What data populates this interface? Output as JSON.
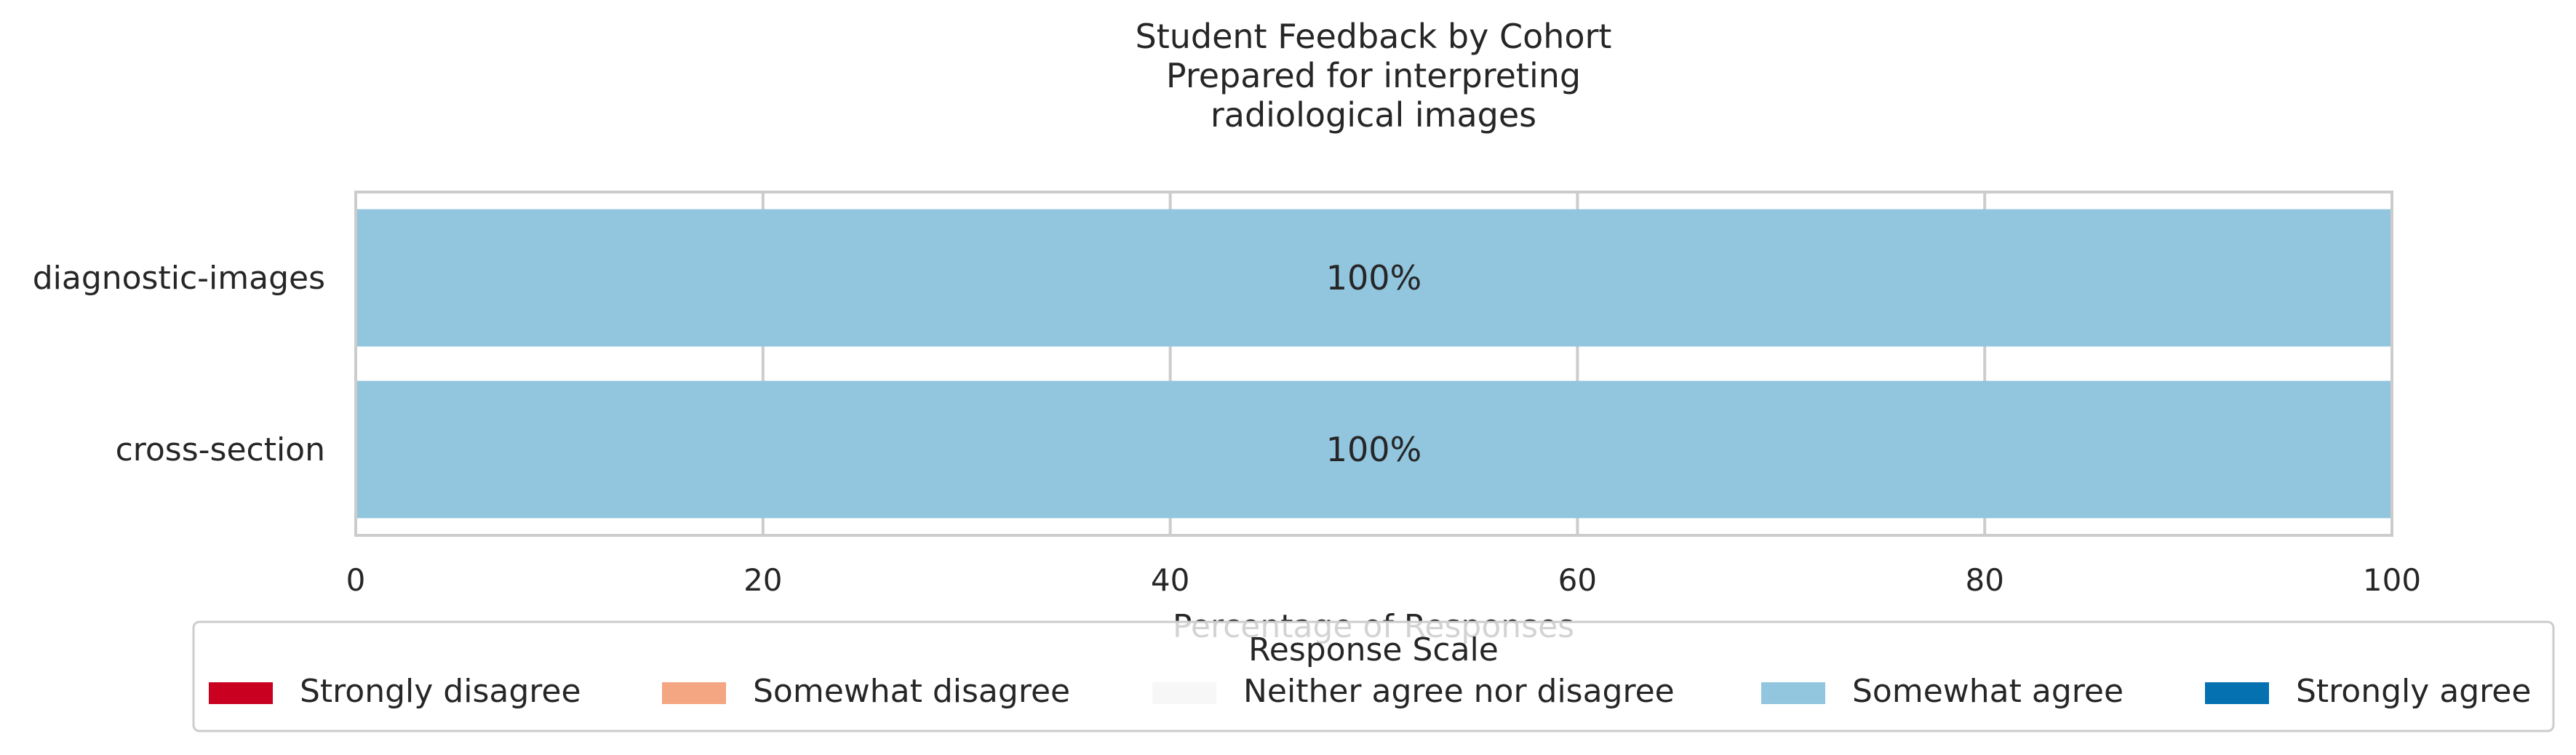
{
  "chart_data": {
    "type": "bar",
    "orientation": "horizontal",
    "stacked": true,
    "title": [
      "Student Feedback by Cohort",
      "Prepared for interpreting",
      "radiological images"
    ],
    "xlabel": "Percentage of Responses",
    "ylabel": "",
    "xlim": [
      0,
      100
    ],
    "xticks": [
      0,
      20,
      40,
      60,
      80,
      100
    ],
    "grid": "vertical",
    "categories": [
      "diagnostic-images",
      "cross-section"
    ],
    "series": [
      {
        "name": "Strongly disagree",
        "color": "#ca0020",
        "values": [
          0,
          0
        ]
      },
      {
        "name": "Somewhat disagree",
        "color": "#f4a582",
        "values": [
          0,
          0
        ]
      },
      {
        "name": "Neither agree nor disagree",
        "color": "#f7f7f7",
        "values": [
          0,
          0
        ]
      },
      {
        "name": "Somewhat agree",
        "color": "#92c5de",
        "values": [
          100,
          100
        ]
      },
      {
        "name": "Strongly agree",
        "color": "#0571b0",
        "values": [
          0,
          0
        ]
      }
    ],
    "data_labels": [
      {
        "category": "diagnostic-images",
        "series": "Somewhat agree",
        "text": "100%"
      },
      {
        "category": "cross-section",
        "series": "Somewhat agree",
        "text": "100%"
      }
    ],
    "legend": {
      "title": "Response Scale",
      "placement": "bottom-center"
    }
  }
}
